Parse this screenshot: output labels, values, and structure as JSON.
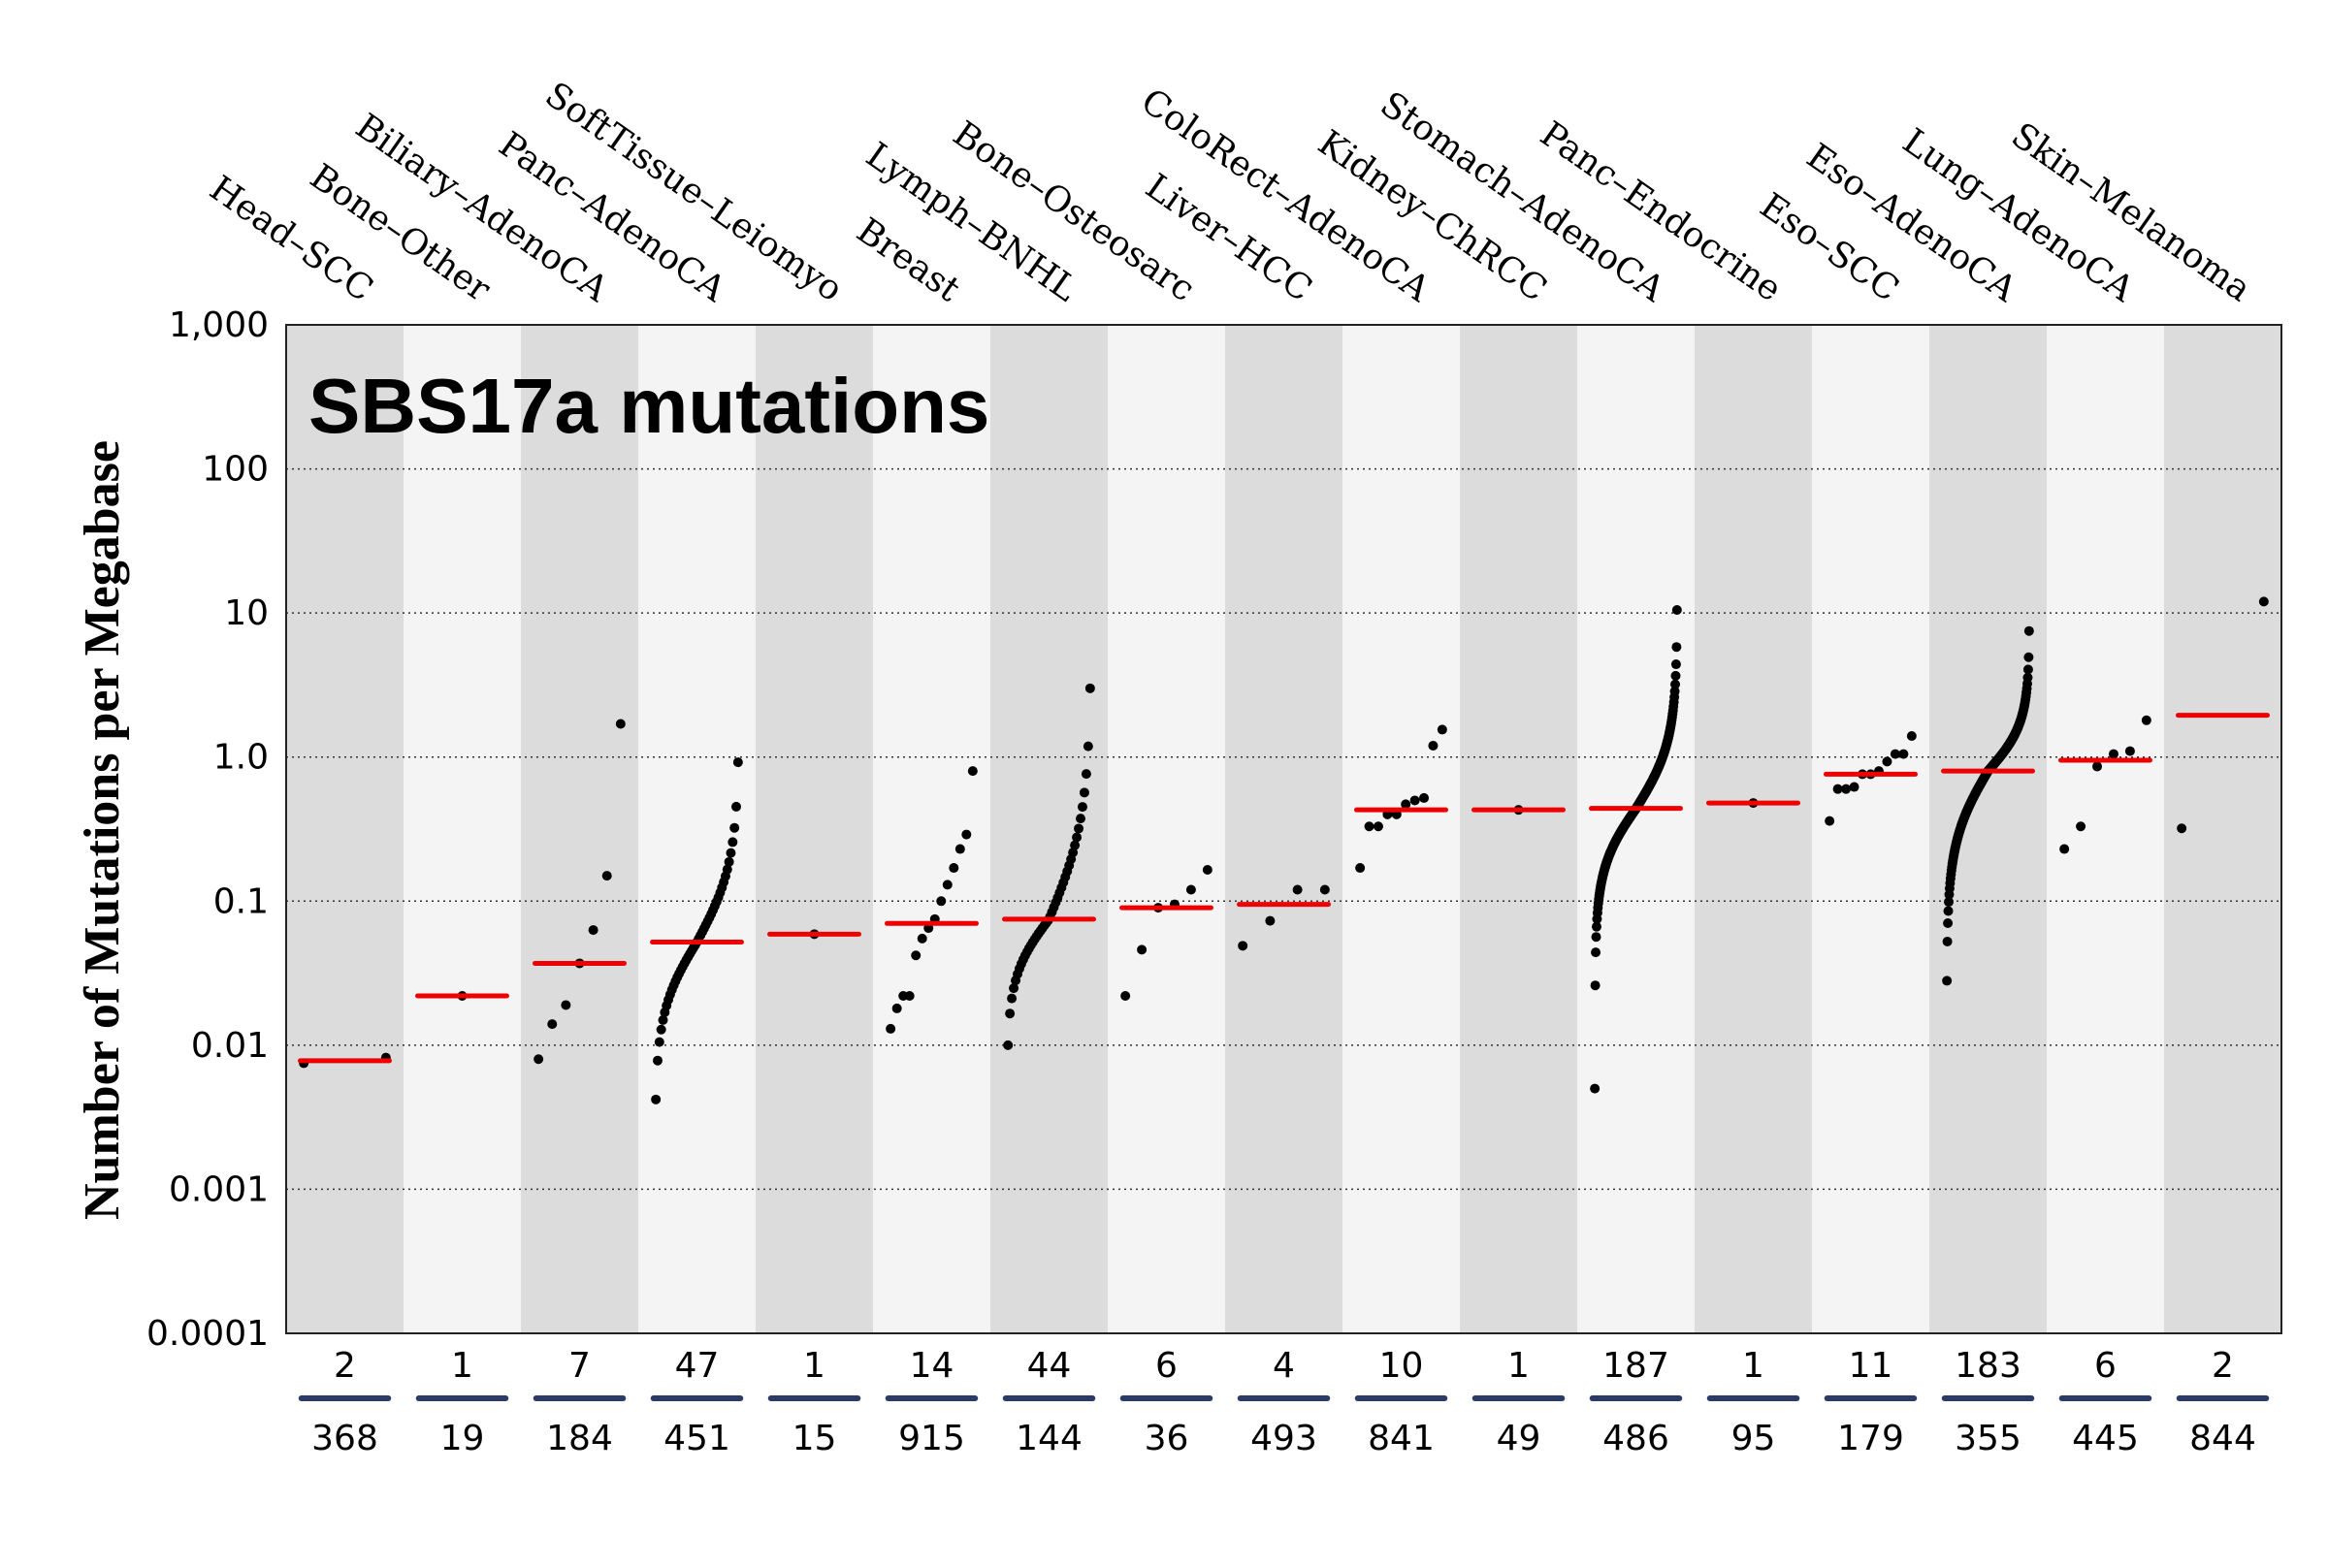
{
  "chart_data": {
    "type": "scatter",
    "title": "SBS17a mutations",
    "ylabel": "Number of Mutations per Megabase",
    "xlabel": "",
    "yscale": "log",
    "ylim": [
      0.0001,
      1000
    ],
    "yticks": [
      {
        "value": 1000,
        "label": "1,000"
      },
      {
        "value": 100,
        "label": "100"
      },
      {
        "value": 10,
        "label": "10"
      },
      {
        "value": 1,
        "label": "1.0"
      },
      {
        "value": 0.1,
        "label": "0.1"
      },
      {
        "value": 0.01,
        "label": "0.01"
      },
      {
        "value": 0.001,
        "label": "0.001"
      },
      {
        "value": 0.0001,
        "label": "0.0001"
      }
    ],
    "grid": "dotted horizontal",
    "colors": {
      "band_dark": "#dcdcdc",
      "band_light": "#f4f4f4",
      "median": "#ee0000",
      "point": "#000000",
      "count_line": "#2b3a67"
    },
    "groups": [
      {
        "name": "Head–SCC",
        "n_with": "2",
        "n_total": "368",
        "median": 0.0078,
        "points": [
          0.0075,
          0.0082
        ]
      },
      {
        "name": "Bone–Other",
        "n_with": "1",
        "n_total": "19",
        "median": 0.022,
        "points": [
          0.022
        ]
      },
      {
        "name": "Biliary–AdenoCA",
        "n_with": "7",
        "n_total": "184",
        "median": 0.037,
        "points": [
          0.008,
          0.014,
          0.019,
          0.037,
          0.063,
          0.15,
          1.7
        ]
      },
      {
        "name": "Panc–AdenoCA",
        "n_with": "47",
        "n_total": "451",
        "median": 0.052,
        "summary": {
          "n": 47,
          "min": 0.0042,
          "max": 0.92
        }
      },
      {
        "name": "SoftTissue–Leiomyo",
        "n_with": "1",
        "n_total": "15",
        "median": 0.059,
        "points": [
          0.059
        ]
      },
      {
        "name": "Breast",
        "n_with": "14",
        "n_total": "915",
        "median": 0.07,
        "points": [
          0.013,
          0.018,
          0.022,
          0.022,
          0.042,
          0.055,
          0.065,
          0.075,
          0.1,
          0.13,
          0.17,
          0.23,
          0.29,
          0.8
        ]
      },
      {
        "name": "Lymph–BNHL",
        "n_with": "44",
        "n_total": "144",
        "median": 0.075,
        "summary": {
          "n": 44,
          "min": 0.01,
          "max": 3.0
        }
      },
      {
        "name": "Bone–Osteosarc",
        "n_with": "6",
        "n_total": "36",
        "median": 0.09,
        "points": [
          0.022,
          0.046,
          0.09,
          0.095,
          0.12,
          0.165
        ]
      },
      {
        "name": "Liver–HCC",
        "n_with": "4",
        "n_total": "493",
        "median": 0.095,
        "points": [
          0.049,
          0.073,
          0.12,
          0.12
        ]
      },
      {
        "name": "ColoRect–AdenoCA",
        "n_with": "10",
        "n_total": "841",
        "median": 0.43,
        "points": [
          0.17,
          0.33,
          0.33,
          0.4,
          0.4,
          0.47,
          0.5,
          0.52,
          1.2,
          1.55
        ]
      },
      {
        "name": "Kidney–ChRCC",
        "n_with": "1",
        "n_total": "49",
        "median": 0.43,
        "points": [
          0.43
        ]
      },
      {
        "name": "Stomach–AdenoCA",
        "n_with": "187",
        "n_total": "486",
        "median": 0.44,
        "summary": {
          "n": 186,
          "min": 0.026,
          "max": 10.5
        },
        "points": [
          0.005
        ]
      },
      {
        "name": "Panc–Endocrine",
        "n_with": "1",
        "n_total": "95",
        "median": 0.48,
        "points": [
          0.48
        ]
      },
      {
        "name": "Eso–SCC",
        "n_with": "11",
        "n_total": "179",
        "median": 0.76,
        "points": [
          0.36,
          0.6,
          0.6,
          0.62,
          0.76,
          0.76,
          0.8,
          0.93,
          1.05,
          1.05,
          1.4
        ]
      },
      {
        "name": "Eso–AdenoCA",
        "n_with": "183",
        "n_total": "355",
        "median": 0.8,
        "summary": {
          "n": 183,
          "min": 0.028,
          "max": 7.5
        }
      },
      {
        "name": "Lung–AdenoCA",
        "n_with": "6",
        "n_total": "445",
        "median": 0.95,
        "points": [
          0.23,
          0.33,
          0.86,
          1.05,
          1.1,
          1.8
        ]
      },
      {
        "name": "Skin–Melanoma",
        "n_with": "2",
        "n_total": "844",
        "median": 1.95,
        "points": [
          0.32,
          12
        ]
      }
    ]
  }
}
